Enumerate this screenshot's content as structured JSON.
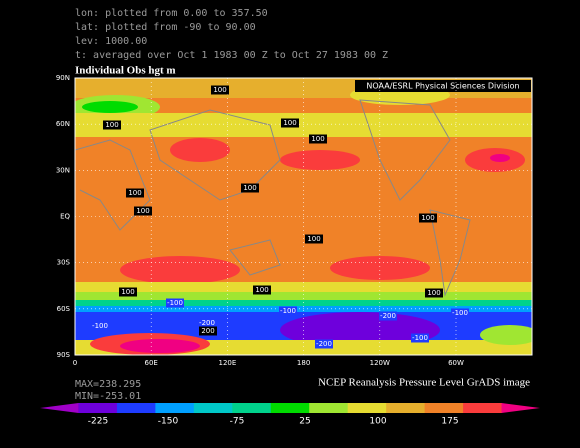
{
  "header": {
    "lines": [
      "lon: plotted from  0.00 to 357.50",
      "lat: plotted from -90 to 90.00",
      "lev: 1000.00",
      "t: averaged over Oct 1 1983 00 Z to Oct 27 1983 00 Z"
    ]
  },
  "map": {
    "title": "Individual Obs hgt m",
    "credit": "NOAA/ESRL Physical Sciences Division",
    "lat_labels": [
      "90N",
      "60N",
      "30N",
      "EQ",
      "30S",
      "60S",
      "90S"
    ],
    "lon_labels": [
      "0",
      "60E",
      "120E",
      "180",
      "120W",
      "60W"
    ],
    "contour_labels": [
      100,
      100,
      100,
      100,
      100,
      100,
      100,
      100,
      100,
      100,
      100,
      100,
      -100,
      -100,
      -100,
      -100,
      -100,
      -200,
      -200,
      -200,
      200
    ]
  },
  "stats": {
    "max": "MAX=238.295",
    "min": "MIN=-253.01"
  },
  "footer": "NCEP Reanalysis Pressure Level GrADS image",
  "colorbar": {
    "colors": [
      "#a000c8",
      "#6e00dc",
      "#1e3cff",
      "#00a0ff",
      "#00c8c8",
      "#00d28c",
      "#00dc00",
      "#a0e632",
      "#e6dc32",
      "#e6af2d",
      "#f08228",
      "#fa3c3c",
      "#f00082"
    ],
    "labels": [
      -225,
      -150,
      -75,
      25,
      100,
      175
    ]
  }
}
